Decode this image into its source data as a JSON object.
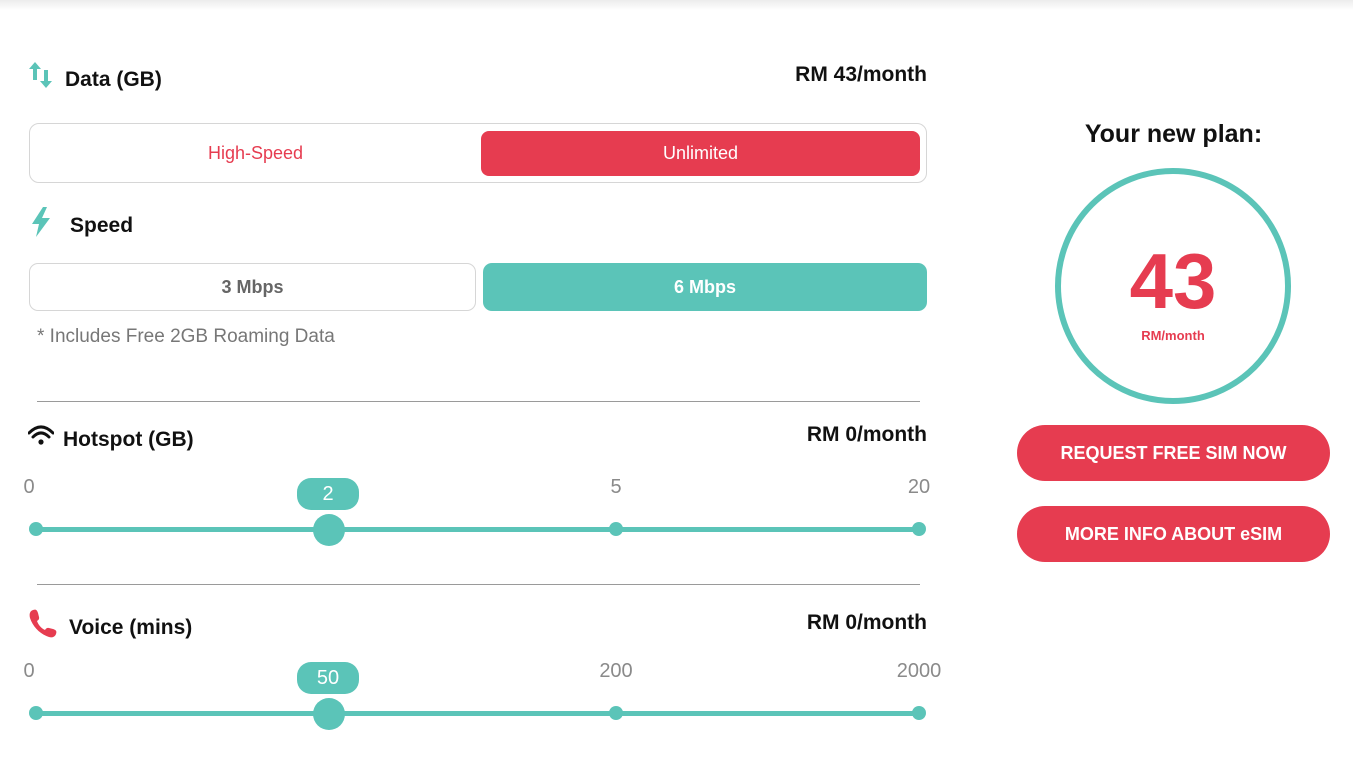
{
  "data_section": {
    "icon": "arrows-up-down-icon",
    "label": "Data (GB)",
    "price": "RM 43/month",
    "options": [
      "High-Speed",
      "Unlimited"
    ],
    "selected": "Unlimited"
  },
  "speed_section": {
    "icon": "lightning-icon",
    "label": "Speed",
    "options": [
      "3 Mbps",
      "6 Mbps"
    ],
    "selected": "6 Mbps",
    "note": "* Includes Free 2GB Roaming Data"
  },
  "hotspot_section": {
    "icon": "wifi-icon",
    "label": "Hotspot (GB)",
    "price": "RM 0/month",
    "ticks": [
      "0",
      "5",
      "20"
    ],
    "value": "2"
  },
  "voice_section": {
    "icon": "phone-icon",
    "label": "Voice (mins)",
    "price": "RM 0/month",
    "ticks": [
      "0",
      "200",
      "2000"
    ],
    "value": "50"
  },
  "plan": {
    "title": "Your new plan:",
    "amount": "43",
    "unit": "RM/month"
  },
  "actions": {
    "request_sim": "REQUEST FREE SIM NOW",
    "more_info": "MORE INFO ABOUT eSIM"
  },
  "colors": {
    "accent_red": "#e63c50",
    "accent_teal": "#5bc4b8"
  }
}
